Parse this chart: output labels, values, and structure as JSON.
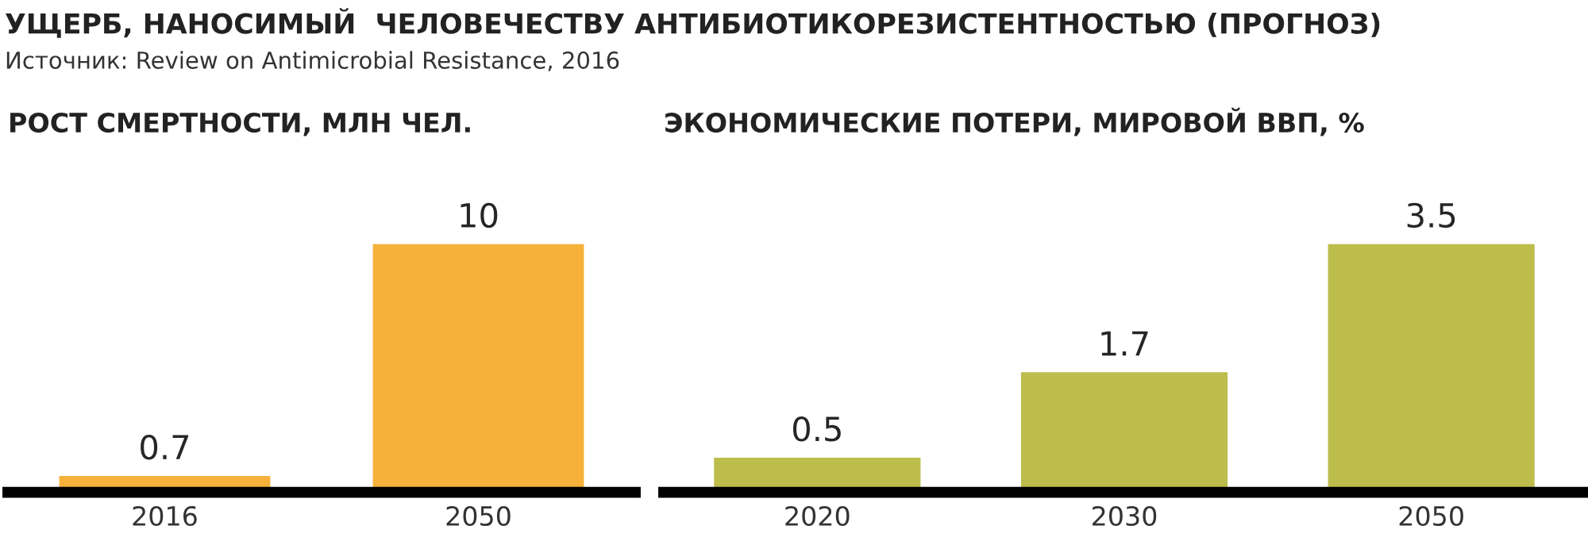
{
  "chart_data": [
    {
      "type": "bar",
      "title": "РОСТ СМЕРТНОСТИ, МЛН ЧЕЛ.",
      "annotations": [
        "УЩЕРБ, НАНОСИМЫЙ  ЧЕЛОВЕЧЕСТВУ АНТИБИОТИКОРЕЗИСТЕНТНОСТЬЮ (ПРОГНОЗ)",
        "Источник: Review on Antimicrobial Resistance, 2016"
      ],
      "categories": [
        "2016",
        "2050"
      ],
      "values": [
        0.7,
        10
      ],
      "color": "#f6b13a",
      "data_labels": true,
      "tick_labels": "x"
    },
    {
      "type": "bar",
      "title": "ЭКОНОМИЧЕСКИЕ ПОТЕРИ, МИРОВОЙ ВВП, %",
      "categories": [
        "2020",
        "2030",
        "2050"
      ],
      "values": [
        0.5,
        1.7,
        3.5
      ],
      "color": "#bdbd4c",
      "data_labels": true,
      "tick_labels": "x"
    }
  ]
}
